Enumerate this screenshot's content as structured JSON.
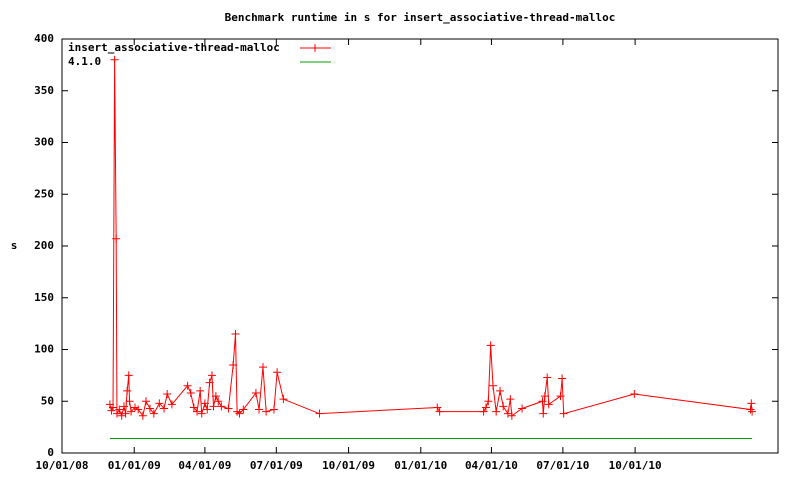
{
  "chart_data": {
    "type": "line",
    "title": "Benchmark runtime in s for insert_associative-thread-malloc",
    "y_label": "s",
    "x": [
      "2008-12-01",
      "2008-12-03",
      "2008-12-05",
      "2008-12-07",
      "2008-12-09",
      "2008-12-10",
      "2008-12-13",
      "2008-12-16",
      "2008-12-19",
      "2008-12-21",
      "2008-12-23",
      "2008-12-25",
      "2008-12-26",
      "2008-12-28",
      "2009-01-02",
      "2009-01-06",
      "2009-01-12",
      "2009-01-16",
      "2009-01-21",
      "2009-01-26",
      "2009-02-02",
      "2009-02-08",
      "2009-02-12",
      "2009-02-18",
      "2009-03-10",
      "2009-03-14",
      "2009-03-18",
      "2009-03-22",
      "2009-03-26",
      "2009-03-28",
      "2009-04-01",
      "2009-04-04",
      "2009-04-07",
      "2009-04-10",
      "2009-04-12",
      "2009-04-15",
      "2009-04-18",
      "2009-04-22",
      "2009-05-01",
      "2009-05-07",
      "2009-05-10",
      "2009-05-12",
      "2009-05-15",
      "2009-05-20",
      "2009-06-05",
      "2009-06-09",
      "2009-06-14",
      "2009-06-18",
      "2009-06-28",
      "2009-07-02",
      "2009-07-10",
      "2009-08-25",
      "2010-01-22",
      "2010-01-25",
      "2010-03-22",
      "2010-03-25",
      "2010-03-28",
      "2010-03-31",
      "2010-04-03",
      "2010-04-07",
      "2010-04-12",
      "2010-04-16",
      "2010-04-22",
      "2010-04-25",
      "2010-04-27",
      "2010-05-10",
      "2010-06-05",
      "2010-06-06",
      "2010-06-08",
      "2010-06-11",
      "2010-06-13",
      "2010-06-28",
      "2010-06-30",
      "2010-07-02",
      "2010-09-30",
      "2011-02-25",
      "2011-02-26",
      "2011-02-27"
    ],
    "series": [
      {
        "name": "insert_associative-thread-malloc",
        "color": "#ff0000",
        "markers": true,
        "values": [
          47,
          41,
          44,
          380,
          207,
          38,
          42,
          36,
          45,
          38,
          60,
          75,
          50,
          40,
          44,
          42,
          36,
          50,
          43,
          38,
          48,
          43,
          57,
          47,
          65,
          58,
          44,
          40,
          60,
          38,
          48,
          42,
          68,
          75,
          45,
          55,
          50,
          45,
          43,
          85,
          115,
          40,
          38,
          42,
          58,
          42,
          83,
          40,
          42,
          78,
          52,
          38,
          44,
          40,
          40,
          44,
          50,
          104,
          65,
          40,
          60,
          45,
          38,
          52,
          36,
          43,
          50,
          38,
          55,
          73,
          47,
          55,
          72,
          38,
          57,
          42,
          48,
          40
        ]
      },
      {
        "name": "4.1.0",
        "color": "#00a000",
        "markers": false,
        "x": [
          "2008-12-01",
          "2011-02-27"
        ],
        "values": [
          14,
          14
        ]
      }
    ],
    "xlim": [
      "2008-10-01",
      "2011-04-01"
    ],
    "xticks": [
      {
        "value": "2008-10-01",
        "label": "10/01/08"
      },
      {
        "value": "2009-01-01",
        "label": "01/01/09"
      },
      {
        "value": "2009-04-01",
        "label": "04/01/09"
      },
      {
        "value": "2009-07-01",
        "label": "07/01/09"
      },
      {
        "value": "2009-10-01",
        "label": "10/01/09"
      },
      {
        "value": "2010-01-01",
        "label": "01/01/10"
      },
      {
        "value": "2010-04-01",
        "label": "04/01/10"
      },
      {
        "value": "2010-07-01",
        "label": "07/01/10"
      },
      {
        "value": "2010-10-01",
        "label": "10/01/10"
      }
    ],
    "ylim": [
      0,
      400
    ],
    "yticks": [
      0,
      50,
      100,
      150,
      200,
      250,
      300,
      350,
      400
    ],
    "grid": false,
    "legend": "top-left"
  }
}
